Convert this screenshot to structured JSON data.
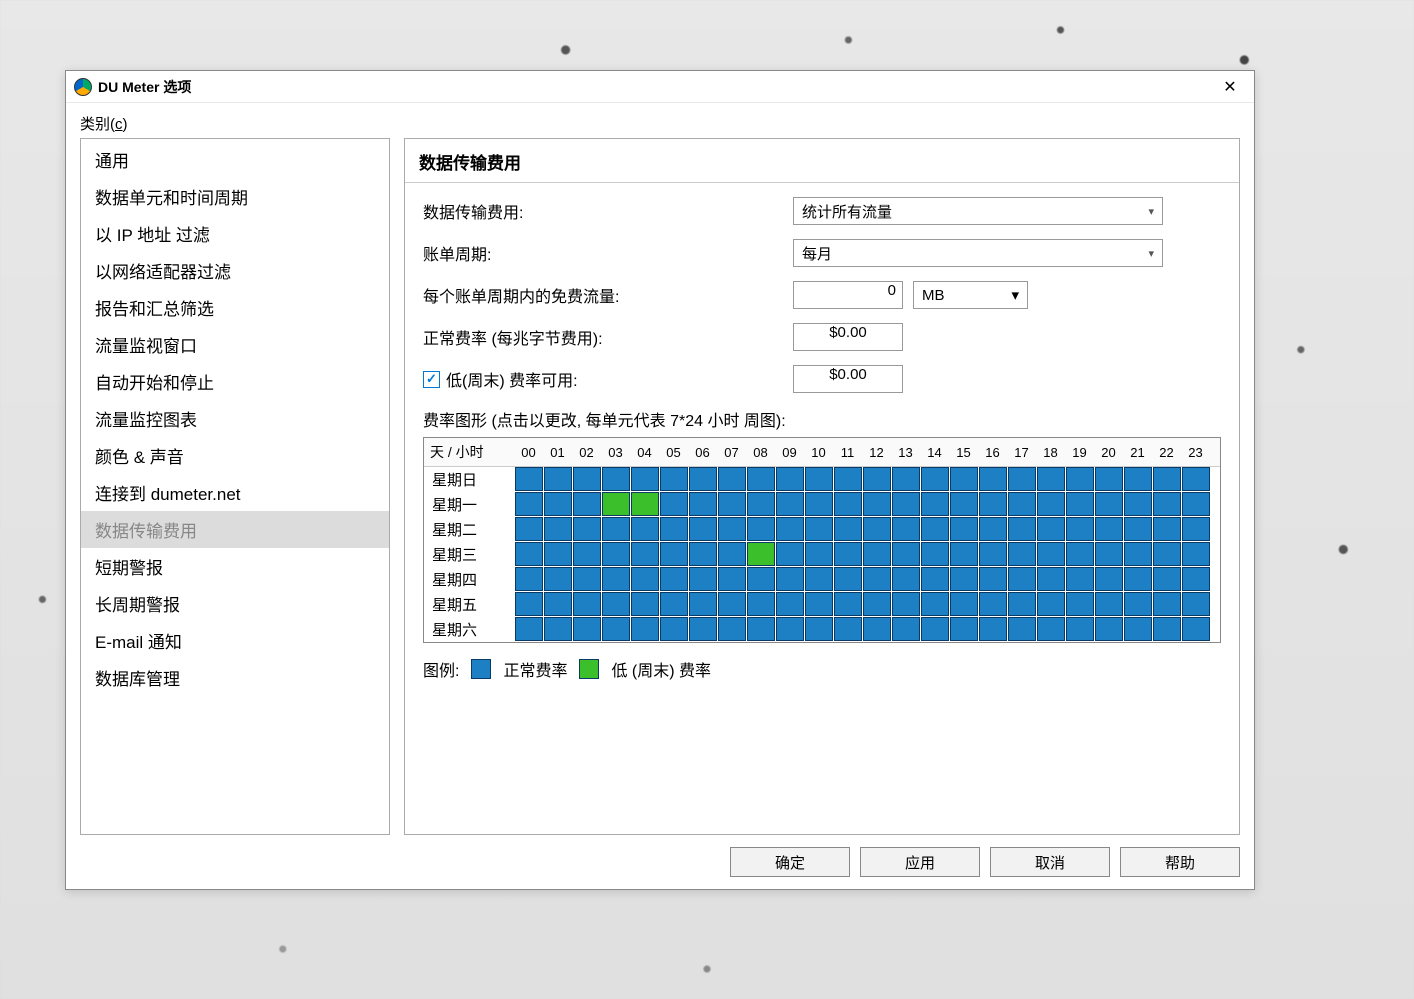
{
  "window": {
    "title": "DU Meter 选项",
    "close_glyph": "✕"
  },
  "sidebar": {
    "label_prefix": "类别(",
    "label_key": "c",
    "label_suffix": ")",
    "items": [
      {
        "label": "通用"
      },
      {
        "label": "数据单元和时间周期"
      },
      {
        "label": "以 IP 地址 过滤"
      },
      {
        "label": "以网络适配器过滤"
      },
      {
        "label": "报告和汇总筛选"
      },
      {
        "label": "流量监视窗口"
      },
      {
        "label": "自动开始和停止"
      },
      {
        "label": "流量监控图表"
      },
      {
        "label": "颜色 & 声音"
      },
      {
        "label": "连接到 dumeter.net"
      },
      {
        "label": "数据传输费用"
      },
      {
        "label": "短期警报"
      },
      {
        "label": "长周期警报"
      },
      {
        "label": "E-mail 通知"
      },
      {
        "label": "数据库管理"
      }
    ],
    "selected_index": 10
  },
  "panel": {
    "title": "数据传输费用",
    "cost_label": "数据传输费用:",
    "cost_select": "统计所有流量",
    "period_label": "账单周期:",
    "period_select": "每月",
    "free_label": "每个账单周期内的免费流量:",
    "free_value": "0",
    "free_unit": "MB",
    "normal_rate_label": "正常费率 (每兆字节费用):",
    "normal_rate_value": "$0.00",
    "low_check_label": "低(周末) 费率可用:",
    "low_rate_value": "$0.00",
    "chart_caption": "费率图形 (点击以更改, 每单元代表 7*24 小时 周图):",
    "legend_label": "图例:",
    "legend_normal": "正常费率",
    "legend_low": "低 (周末) 费率",
    "colors": {
      "normal": "#1d7fc4",
      "low": "#3bbf2b",
      "cell_border": "#0a3a66",
      "window_bg": "#ffffff",
      "selected_bg": "#dcdcdc"
    }
  },
  "rate_chart": {
    "type": "heatmap",
    "corner_label": "天 / 小时",
    "hours": [
      "00",
      "01",
      "02",
      "03",
      "04",
      "05",
      "06",
      "07",
      "08",
      "09",
      "10",
      "11",
      "12",
      "13",
      "14",
      "15",
      "16",
      "17",
      "18",
      "19",
      "20",
      "21",
      "22",
      "23"
    ],
    "days": [
      "星期日",
      "星期一",
      "星期二",
      "星期三",
      "星期四",
      "星期五",
      "星期六"
    ],
    "low_cells": [
      {
        "day": 1,
        "hour": 3
      },
      {
        "day": 1,
        "hour": 4
      },
      {
        "day": 3,
        "hour": 8
      }
    ]
  },
  "buttons": {
    "ok": "确定",
    "apply": "应用",
    "cancel": "取消",
    "help": "帮助"
  }
}
